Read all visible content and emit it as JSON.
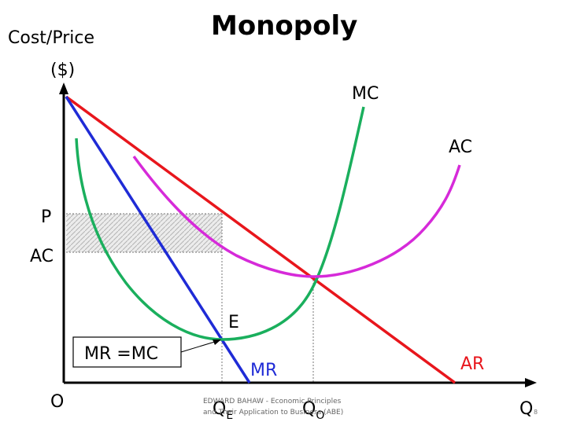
{
  "title": "Monopoly",
  "y_axis_label_line1": "Cost/Price",
  "y_axis_label_line2": "($)",
  "x_axis_label": "Q",
  "origin_label": "O",
  "curves": {
    "mc": "MC",
    "ac": "AC",
    "mr": "MR",
    "ar": "AR"
  },
  "levels": {
    "p": "P",
    "ac": "AC"
  },
  "points": {
    "e": "E"
  },
  "quantities": {
    "qe_main": "Q",
    "qe_sub": "E",
    "qo_main": "Q",
    "qo_sub": "O"
  },
  "callout": "MR =MC",
  "footer_line1": "EDWARD BAHAW - Economic Principles",
  "footer_line2": "and Their Application to Business (ABE)",
  "slide_number": "8",
  "colors": {
    "ar": "#e8161c",
    "mr": "#1f2bd6",
    "mc": "#1aaf5d",
    "ac": "#d62ad9",
    "mr_label": "#1f2bd6",
    "ar_label": "#e8161c",
    "shading": "#d8d8d8"
  }
}
